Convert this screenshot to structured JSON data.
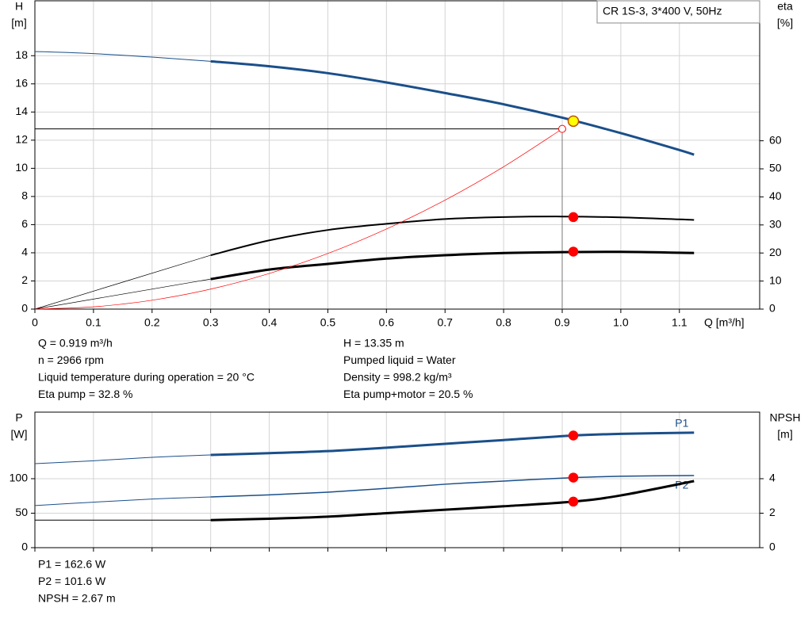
{
  "chart_data": [
    {
      "type": "line",
      "title": "CR 1S-3, 3*400 V, 50Hz",
      "y_label": [
        "H",
        "[m]"
      ],
      "y2_label": [
        "eta",
        "[%]"
      ],
      "x_label": "Q [m³/h]",
      "xlim": [
        0,
        1.237
      ],
      "xticks": [
        0,
        0.1,
        0.2,
        0.3,
        0.4,
        0.5,
        0.6,
        0.7,
        0.8,
        0.9,
        {
          "value": 1.0,
          "label": "1.0"
        },
        1.1
      ],
      "ylim": [
        0,
        21.9
      ],
      "yticks": [
        0,
        2,
        4,
        6,
        8,
        10,
        12,
        14,
        16,
        18
      ],
      "y2lim": [
        0,
        109.9
      ],
      "y2ticks": [
        0,
        10,
        20,
        30,
        40,
        50,
        60
      ],
      "grid": true,
      "series": [
        {
          "color": "#1a4f8a",
          "width": 1,
          "x": [
            0,
            0.1,
            0.2,
            0.3
          ],
          "values": [
            18.3,
            18.15,
            17.9,
            17.6
          ]
        },
        {
          "color": "#1a4f8a",
          "width": 3,
          "x": [
            0.3,
            0.4,
            0.5,
            0.6,
            0.7,
            0.8,
            0.9,
            1.0,
            1.1,
            1.125
          ],
          "values": [
            17.6,
            17.25,
            16.76,
            16.1,
            15.35,
            14.55,
            13.6,
            12.5,
            11.3,
            10.97
          ]
        },
        {
          "color": "#000000",
          "width": 0.7,
          "axis": "y2",
          "x": [
            0,
            0.3
          ],
          "values": [
            0,
            19.2
          ]
        },
        {
          "color": "#000000",
          "width": 2,
          "axis": "y2",
          "x": [
            0.3,
            0.4,
            0.5,
            0.6,
            0.7,
            0.8,
            0.9,
            1.0,
            1.1,
            1.125
          ],
          "values": [
            19.2,
            24.5,
            28.2,
            30.4,
            32.1,
            32.8,
            33,
            32.7,
            32,
            31.8
          ]
        },
        {
          "color": "#000000",
          "width": 0.7,
          "axis": "y2",
          "x": [
            0,
            0.3
          ],
          "values": [
            0,
            10.7
          ]
        },
        {
          "color": "#000000",
          "width": 3,
          "axis": "y2",
          "x": [
            0.3,
            0.4,
            0.5,
            0.6,
            0.7,
            0.8,
            0.9,
            1.0,
            1.1,
            1.125
          ],
          "values": [
            10.7,
            14.1,
            16.1,
            18,
            19.2,
            20,
            20.3,
            20.4,
            20.1,
            20
          ]
        },
        {
          "color": "#ff0000",
          "width": 0.7,
          "x": [
            0,
            0.1,
            0.2,
            0.3,
            0.4,
            0.5,
            0.6,
            0.7,
            0.8,
            0.9
          ],
          "values": [
            0,
            0.16,
            0.63,
            1.42,
            2.53,
            3.95,
            5.69,
            7.74,
            10.11,
            12.8
          ]
        }
      ],
      "points": [
        {
          "x": 0.919,
          "y": 13.35,
          "fill": "#ffff00",
          "stroke": "#c05000"
        },
        {
          "x": 0.919,
          "y": 32.8,
          "axis": "y2",
          "fill": "#ff0000",
          "stroke": "#ff0000"
        },
        {
          "x": 0.919,
          "y": 20.5,
          "axis": "y2",
          "fill": "#ff0000",
          "stroke": "#ff0000"
        }
      ],
      "guide": {
        "x": 0.9,
        "y": 12.8,
        "color": "#ff0000"
      },
      "info": [
        [
          "Q = 0.919 m³/h",
          "n = 2966 rpm",
          "Liquid temperature during operation = 20 °C",
          "Eta pump = 32.8 %"
        ],
        [
          "H = 13.35 m",
          "Pumped liquid = Water",
          "Density = 998.2 kg/m³",
          "Eta pump+motor = 20.5 %"
        ]
      ]
    },
    {
      "type": "line",
      "y_label": [
        "P",
        "[W]"
      ],
      "y2_label": [
        "NPSH",
        "[m]"
      ],
      "xlim": [
        0,
        1.237
      ],
      "ylim": [
        0,
        196.5
      ],
      "yticks": [
        0,
        50,
        100
      ],
      "y2lim": [
        0,
        7.86
      ],
      "y2ticks": [
        0,
        2,
        4
      ],
      "grid": true,
      "series": [
        {
          "color": "#1a4f8a",
          "width": 1,
          "x": [
            0,
            0.1,
            0.2,
            0.3
          ],
          "values": [
            121.8,
            126,
            131,
            134.5
          ]
        },
        {
          "name": "P1",
          "color": "#1a4f8a",
          "width": 3,
          "x": [
            0.3,
            0.4,
            0.5,
            0.6,
            0.7,
            0.8,
            0.919,
            1.0,
            1.125
          ],
          "values": [
            134.5,
            137,
            140,
            145,
            150.6,
            156,
            162.6,
            165,
            166.7
          ]
        },
        {
          "color": "#1a4f8a",
          "width": 1,
          "x": [
            0,
            0.1,
            0.2,
            0.3
          ],
          "values": [
            61,
            66,
            70.5,
            73.6
          ]
        },
        {
          "name": "P2",
          "color": "#1a4f8a",
          "width": 1.5,
          "x": [
            0.3,
            0.4,
            0.5,
            0.6,
            0.7,
            0.8,
            0.919,
            1.0,
            1.125
          ],
          "values": [
            73.6,
            76.5,
            80.5,
            86,
            92,
            96.5,
            101.6,
            103.5,
            104.6
          ]
        },
        {
          "color": "#000000",
          "width": 1,
          "axis": "y2",
          "x": [
            0,
            0.1,
            0.2,
            0.3
          ],
          "values": [
            1.6,
            1.6,
            1.6,
            1.6
          ]
        },
        {
          "color": "#000000",
          "width": 3,
          "axis": "y2",
          "x": [
            0.3,
            0.4,
            0.5,
            0.6,
            0.7,
            0.8,
            0.919,
            1.0,
            1.125
          ],
          "values": [
            1.6,
            1.68,
            1.8,
            2,
            2.2,
            2.4,
            2.67,
            3.03,
            3.86
          ]
        }
      ],
      "points": [
        {
          "x": 0.919,
          "y": 162.6,
          "fill": "#ff0000",
          "stroke": "#ff0000"
        },
        {
          "x": 0.919,
          "y": 101.6,
          "fill": "#ff0000",
          "stroke": "#ff0000"
        },
        {
          "x": 0.919,
          "y": 2.67,
          "axis": "y2",
          "fill": "#ff0000",
          "stroke": "#ff0000"
        }
      ],
      "info": [
        [
          "P1 = 162.6 W",
          "P2 = 101.6 W",
          "NPSH = 2.67 m"
        ]
      ]
    }
  ]
}
